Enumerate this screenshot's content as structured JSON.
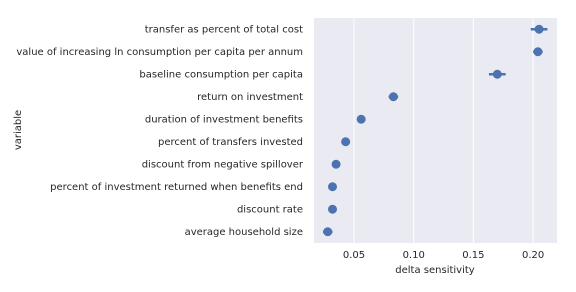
{
  "chart_data": {
    "type": "point",
    "x_label": "delta sensitivity",
    "y_label": "variable",
    "categories": [
      "transfer as percent of total cost",
      "value of increasing ln consumption per capita per annum",
      "baseline consumption per capita",
      "return on investment",
      "duration of investment benefits",
      "percent of transfers invested",
      "discount from negative spillover",
      "percent of investment returned when benefits end",
      "discount rate",
      "average household size"
    ],
    "values": [
      0.205,
      0.204,
      0.17,
      0.083,
      0.056,
      0.043,
      0.035,
      0.032,
      0.032,
      0.028
    ],
    "errors": [
      0.007,
      0.004,
      0.007,
      0.004,
      0.001,
      0.001,
      0.001,
      0.001,
      0.003,
      0.004
    ],
    "color": "#4c72b0",
    "xlim": [
      0.0165,
      0.22
    ],
    "xticks": [
      0.05,
      {
        "value": 0.1,
        "label": "0.10"
      },
      0.15,
      {
        "value": 0.2,
        "label": "0.20"
      }
    ],
    "grid": true
  }
}
